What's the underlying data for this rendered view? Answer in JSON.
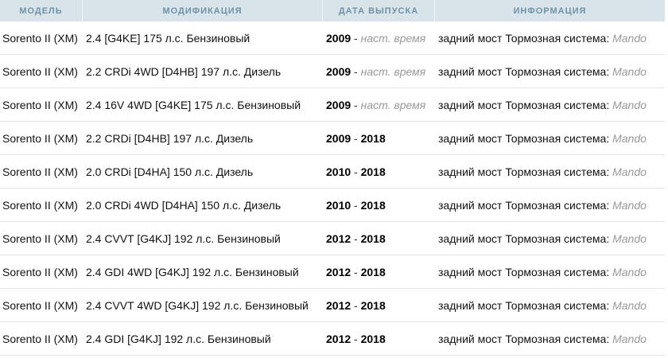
{
  "headers": [
    "МОДЕЛЬ",
    "МОДИФИКАЦИЯ",
    "ДАТА ВЫПУСКА",
    "ИНФОРМАЦИЯ"
  ],
  "rows": [
    {
      "model": "Sorento II (XM)",
      "mod": "2.4 [G4KE] 175 л.с. Бензиновый",
      "from": "2009",
      "sep": " - ",
      "to": "наст. время",
      "to_current": true,
      "info": "задний мост Тормозная система: ",
      "brake": "Mando"
    },
    {
      "model": "Sorento II (XM)",
      "mod": "2.2 CRDi 4WD [D4HB] 197 л.с. Дизель",
      "from": "2009",
      "sep": " - ",
      "to": "наст. время",
      "to_current": true,
      "info": "задний мост Тормозная система: ",
      "brake": "Mando"
    },
    {
      "model": "Sorento II (XM)",
      "mod": "2.4 16V 4WD [G4KE] 175 л.с. Бензиновый",
      "from": "2009",
      "sep": " - ",
      "to": "наст. время",
      "to_current": true,
      "info": "задний мост Тормозная система: ",
      "brake": "Mando"
    },
    {
      "model": "Sorento II (XM)",
      "mod": "2.2 CRDi [D4HB] 197 л.с. Дизель",
      "from": "2009",
      "sep": " - ",
      "to": "2018",
      "to_current": false,
      "info": "задний мост Тормозная система: ",
      "brake": "Mando"
    },
    {
      "model": "Sorento II (XM)",
      "mod": "2.0 CRDi [D4HA] 150 л.с. Дизель",
      "from": "2010",
      "sep": " - ",
      "to": "2018",
      "to_current": false,
      "info": "задний мост Тормозная система: ",
      "brake": "Mando"
    },
    {
      "model": "Sorento II (XM)",
      "mod": "2.0 CRDi 4WD [D4HA] 150 л.с. Дизель",
      "from": "2010",
      "sep": " - ",
      "to": "2018",
      "to_current": false,
      "info": "задний мост Тормозная система: ",
      "brake": "Mando"
    },
    {
      "model": "Sorento II (XM)",
      "mod": "2.4 CVVT [G4KJ] 192 л.с. Бензиновый",
      "from": "2012",
      "sep": " - ",
      "to": "2018",
      "to_current": false,
      "info": "задний мост Тормозная система: ",
      "brake": "Mando"
    },
    {
      "model": "Sorento II (XM)",
      "mod": "2.4 GDI 4WD [G4KJ] 192 л.с. Бензиновый",
      "from": "2012",
      "sep": " - ",
      "to": "2018",
      "to_current": false,
      "info": "задний мост Тормозная система: ",
      "brake": "Mando"
    },
    {
      "model": "Sorento II (XM)",
      "mod": "2.4 CVVT 4WD [G4KJ] 192 л.с. Бензиновый",
      "from": "2012",
      "sep": " - ",
      "to": "2018",
      "to_current": false,
      "info": "задний мост Тормозная система: ",
      "brake": "Mando"
    },
    {
      "model": "Sorento II (XM)",
      "mod": "2.4 GDI [G4KJ] 192 л.с. Бензиновый",
      "from": "2012",
      "sep": " - ",
      "to": "2018",
      "to_current": false,
      "info": "задний мост Тормозная система: ",
      "brake": "Mando"
    }
  ]
}
